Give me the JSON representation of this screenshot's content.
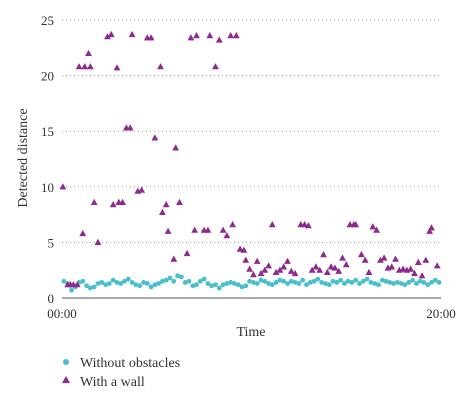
{
  "chart_data": {
    "type": "scatter",
    "xlabel": "Time",
    "ylabel": "Detected distance",
    "x_ticks": [
      "00:00",
      "20:00"
    ],
    "y_ticks": [
      0,
      5,
      10,
      15,
      20,
      25
    ],
    "xlim": [
      0,
      20
    ],
    "ylim": [
      0,
      25
    ],
    "grid": "horizontal dotted",
    "legend_position": "bottom-left",
    "series": [
      {
        "name": "Without obstacles",
        "color": "#49c0c9",
        "marker": "circle",
        "points": [
          [
            0.1,
            1.5
          ],
          [
            0.3,
            1.3
          ],
          [
            0.5,
            0.7
          ],
          [
            0.7,
            1.0
          ],
          [
            0.9,
            1.4
          ],
          [
            1.1,
            1.5
          ],
          [
            1.3,
            1.1
          ],
          [
            1.5,
            0.9
          ],
          [
            1.7,
            1.0
          ],
          [
            1.9,
            1.3
          ],
          [
            2.1,
            1.4
          ],
          [
            2.3,
            1.2
          ],
          [
            2.5,
            1.3
          ],
          [
            2.7,
            1.6
          ],
          [
            2.9,
            1.4
          ],
          [
            3.1,
            1.3
          ],
          [
            3.3,
            1.5
          ],
          [
            3.5,
            1.7
          ],
          [
            3.7,
            1.4
          ],
          [
            3.9,
            1.2
          ],
          [
            4.1,
            1.1
          ],
          [
            4.3,
            1.4
          ],
          [
            4.5,
            1.3
          ],
          [
            4.7,
            1.0
          ],
          [
            4.9,
            1.2
          ],
          [
            5.1,
            1.3
          ],
          [
            5.3,
            1.5
          ],
          [
            5.5,
            1.6
          ],
          [
            5.7,
            1.8
          ],
          [
            5.9,
            1.5
          ],
          [
            6.1,
            2.0
          ],
          [
            6.3,
            1.9
          ],
          [
            6.5,
            1.4
          ],
          [
            6.7,
            1.5
          ],
          [
            6.9,
            1.1
          ],
          [
            7.1,
            1.2
          ],
          [
            7.3,
            1.5
          ],
          [
            7.5,
            1.7
          ],
          [
            7.7,
            1.3
          ],
          [
            7.9,
            1.1
          ],
          [
            8.1,
            1.2
          ],
          [
            8.3,
            0.9
          ],
          [
            8.5,
            1.2
          ],
          [
            8.7,
            1.3
          ],
          [
            8.9,
            1.4
          ],
          [
            9.1,
            1.3
          ],
          [
            9.3,
            1.2
          ],
          [
            9.5,
            1.0
          ],
          [
            9.7,
            1.1
          ],
          [
            9.9,
            1.5
          ],
          [
            10.1,
            1.4
          ],
          [
            10.3,
            1.3
          ],
          [
            10.5,
            1.6
          ],
          [
            10.7,
            1.5
          ],
          [
            10.9,
            1.3
          ],
          [
            11.1,
            1.2
          ],
          [
            11.3,
            1.4
          ],
          [
            11.5,
            1.6
          ],
          [
            11.7,
            1.5
          ],
          [
            11.9,
            1.3
          ],
          [
            12.1,
            1.5
          ],
          [
            12.3,
            1.4
          ],
          [
            12.5,
            1.3
          ],
          [
            12.7,
            1.6
          ],
          [
            12.9,
            1.2
          ],
          [
            13.1,
            1.4
          ],
          [
            13.3,
            1.5
          ],
          [
            13.5,
            1.7
          ],
          [
            13.7,
            1.4
          ],
          [
            13.9,
            1.3
          ],
          [
            14.1,
            1.2
          ],
          [
            14.3,
            1.5
          ],
          [
            14.5,
            1.4
          ],
          [
            14.7,
            1.6
          ],
          [
            14.9,
            1.3
          ],
          [
            15.1,
            1.5
          ],
          [
            15.3,
            1.4
          ],
          [
            15.5,
            1.6
          ],
          [
            15.7,
            1.3
          ],
          [
            15.9,
            1.5
          ],
          [
            16.1,
            1.7
          ],
          [
            16.3,
            1.4
          ],
          [
            16.5,
            1.3
          ],
          [
            16.7,
            1.2
          ],
          [
            16.9,
            1.6
          ],
          [
            17.1,
            1.5
          ],
          [
            17.3,
            1.4
          ],
          [
            17.5,
            1.3
          ],
          [
            17.7,
            1.4
          ],
          [
            17.9,
            1.3
          ],
          [
            18.1,
            1.2
          ],
          [
            18.3,
            1.4
          ],
          [
            18.5,
            1.6
          ],
          [
            18.7,
            1.3
          ],
          [
            18.9,
            1.5
          ],
          [
            19.1,
            1.4
          ],
          [
            19.3,
            1.2
          ],
          [
            19.5,
            1.4
          ],
          [
            19.7,
            1.6
          ],
          [
            19.9,
            1.4
          ]
        ]
      },
      {
        "name": "With a wall",
        "color": "#8e2a8e",
        "marker": "triangle",
        "points": [
          [
            0.05,
            10.0
          ],
          [
            0.3,
            1.2
          ],
          [
            0.45,
            1.2
          ],
          [
            0.6,
            1.2
          ],
          [
            0.8,
            1.2
          ],
          [
            0.9,
            20.8
          ],
          [
            1.1,
            5.8
          ],
          [
            1.2,
            20.8
          ],
          [
            1.4,
            22.0
          ],
          [
            1.5,
            20.8
          ],
          [
            1.7,
            8.6
          ],
          [
            1.9,
            5.0
          ],
          [
            2.4,
            23.5
          ],
          [
            2.6,
            23.7
          ],
          [
            2.7,
            8.4
          ],
          [
            2.9,
            20.7
          ],
          [
            3.0,
            8.6
          ],
          [
            3.2,
            8.6
          ],
          [
            3.4,
            15.3
          ],
          [
            3.6,
            15.3
          ],
          [
            3.7,
            23.7
          ],
          [
            4.0,
            9.6
          ],
          [
            4.2,
            9.7
          ],
          [
            4.5,
            23.4
          ],
          [
            4.7,
            23.4
          ],
          [
            4.9,
            14.4
          ],
          [
            5.2,
            20.8
          ],
          [
            5.3,
            7.7
          ],
          [
            5.5,
            8.4
          ],
          [
            5.6,
            6.0
          ],
          [
            5.9,
            3.5
          ],
          [
            6.0,
            13.5
          ],
          [
            6.2,
            8.6
          ],
          [
            6.6,
            4.0
          ],
          [
            6.8,
            23.4
          ],
          [
            7.0,
            6.1
          ],
          [
            7.1,
            23.6
          ],
          [
            7.5,
            6.1
          ],
          [
            7.7,
            6.1
          ],
          [
            7.8,
            23.6
          ],
          [
            8.1,
            20.8
          ],
          [
            8.3,
            23.2
          ],
          [
            8.5,
            6.1
          ],
          [
            8.7,
            5.6
          ],
          [
            8.9,
            23.6
          ],
          [
            9.0,
            6.6
          ],
          [
            9.2,
            23.6
          ],
          [
            9.4,
            4.4
          ],
          [
            9.6,
            4.3
          ],
          [
            9.7,
            3.4
          ],
          [
            9.9,
            2.6
          ],
          [
            10.1,
            2.1
          ],
          [
            10.3,
            3.3
          ],
          [
            10.5,
            2.2
          ],
          [
            10.7,
            2.5
          ],
          [
            10.9,
            2.9
          ],
          [
            11.1,
            6.6
          ],
          [
            11.3,
            2.3
          ],
          [
            11.5,
            2.5
          ],
          [
            11.7,
            2.8
          ],
          [
            11.9,
            3.3
          ],
          [
            12.1,
            2.4
          ],
          [
            12.3,
            2.2
          ],
          [
            12.6,
            6.6
          ],
          [
            12.8,
            6.6
          ],
          [
            13.0,
            6.5
          ],
          [
            13.2,
            2.5
          ],
          [
            13.4,
            2.8
          ],
          [
            13.6,
            2.5
          ],
          [
            13.8,
            3.9
          ],
          [
            14.0,
            2.3
          ],
          [
            14.2,
            2.8
          ],
          [
            14.4,
            2.7
          ],
          [
            14.6,
            2.4
          ],
          [
            14.8,
            3.6
          ],
          [
            15.0,
            3.0
          ],
          [
            15.2,
            6.6
          ],
          [
            15.4,
            6.6
          ],
          [
            15.5,
            6.6
          ],
          [
            15.8,
            3.9
          ],
          [
            16.0,
            3.4
          ],
          [
            16.2,
            2.3
          ],
          [
            16.4,
            6.4
          ],
          [
            16.6,
            6.1
          ],
          [
            16.8,
            3.4
          ],
          [
            17.0,
            3.6
          ],
          [
            17.2,
            2.7
          ],
          [
            17.4,
            2.8
          ],
          [
            17.6,
            3.5
          ],
          [
            17.8,
            2.5
          ],
          [
            18.0,
            2.6
          ],
          [
            18.2,
            2.5
          ],
          [
            18.4,
            2.6
          ],
          [
            18.6,
            2.2
          ],
          [
            18.8,
            3.2
          ],
          [
            19.0,
            2.0
          ],
          [
            19.2,
            3.4
          ],
          [
            19.4,
            6.0
          ],
          [
            19.5,
            6.3
          ],
          [
            19.8,
            2.9
          ]
        ]
      }
    ]
  }
}
